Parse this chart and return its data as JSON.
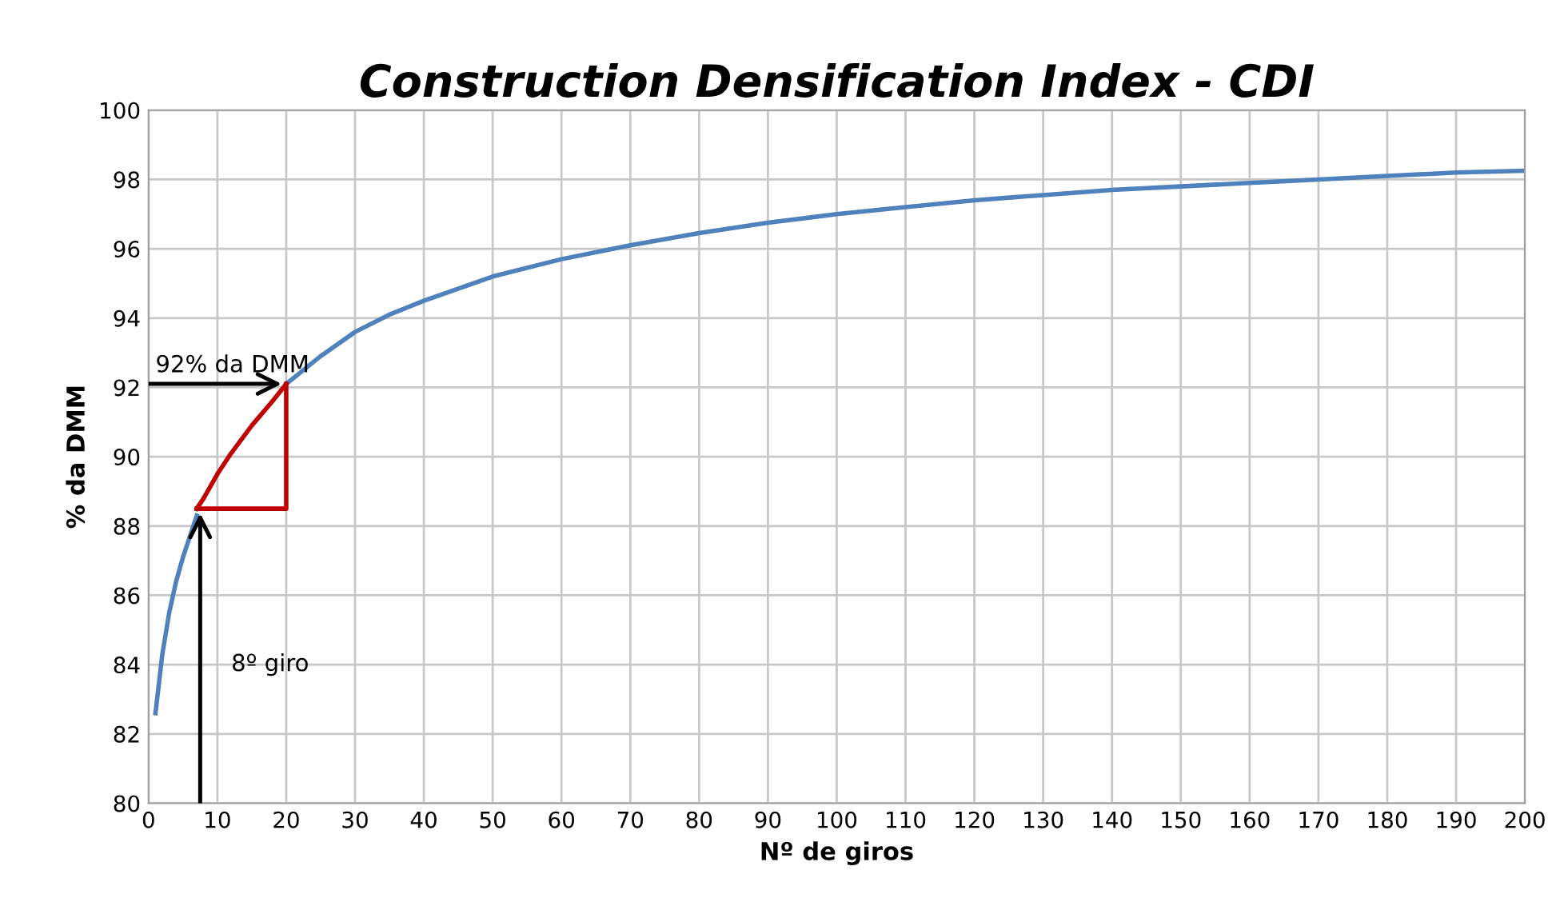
{
  "chart_data": {
    "type": "line",
    "title": "Construction Densification Index - CDI",
    "xlabel": "Nº de giros",
    "ylabel": "% da DMM",
    "xlim": [
      0,
      200
    ],
    "xticks": [
      0,
      10,
      20,
      30,
      40,
      50,
      60,
      70,
      80,
      90,
      100,
      110,
      120,
      130,
      140,
      150,
      160,
      170,
      180,
      190,
      200
    ],
    "ylim": [
      80,
      100
    ],
    "yticks": [
      80,
      82,
      84,
      86,
      88,
      90,
      92,
      94,
      96,
      98,
      100
    ],
    "grid": true,
    "legend": false,
    "series": [
      {
        "color": "#4f81bd",
        "x": [
          1,
          2,
          3,
          4,
          5,
          6,
          7,
          8,
          10,
          12,
          15,
          18,
          20,
          25,
          30,
          35,
          40,
          50,
          60,
          70,
          80,
          90,
          100,
          110,
          120,
          130,
          140,
          150,
          160,
          170,
          180,
          190,
          200
        ],
        "values": [
          82.6,
          84.3,
          85.5,
          86.4,
          87.1,
          87.7,
          88.3,
          null,
          null,
          null,
          null,
          null,
          92.1,
          92.9,
          93.6,
          94.1,
          94.5,
          95.2,
          95.7,
          96.1,
          96.45,
          96.75,
          97.0,
          97.2,
          97.4,
          97.55,
          97.7,
          97.8,
          97.9,
          98.0,
          98.1,
          98.2,
          98.25
        ]
      },
      {
        "color": "#c00000",
        "x": [
          7,
          8,
          10,
          12,
          15,
          18,
          20
        ],
        "values": [
          88.5,
          88.8,
          89.5,
          90.1,
          90.9,
          91.6,
          92.1
        ]
      }
    ],
    "annotations": [
      "92% da DMM",
      "8º giro"
    ]
  }
}
